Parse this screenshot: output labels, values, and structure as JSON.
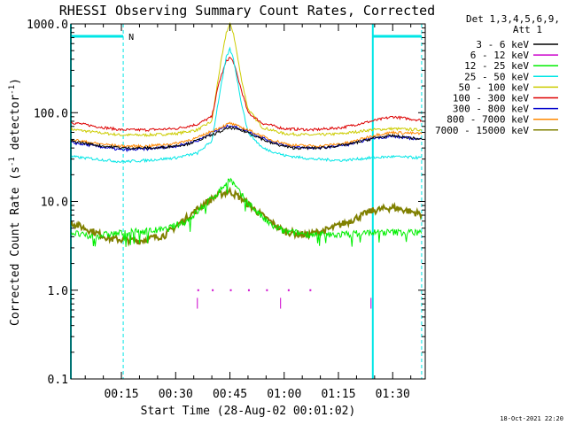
{
  "chart_data": {
    "type": "line",
    "title": "RHESSI Observing Summary Count Rates, Corrected",
    "xlabel": "Start Time (28-Aug-02 00:01:02)",
    "ylabel_main": "Corrected Count Rate (s",
    "ylabel_sup1": "-1",
    "ylabel_mid": " detector",
    "ylabel_sup2": "-1",
    "ylabel_end": ")",
    "y_scale": "log",
    "ylim": [
      0.1,
      1000.0
    ],
    "xlim_minutes": [
      1.03,
      99
    ],
    "x_tick_labels": [
      "00:15",
      "00:30",
      "00:45",
      "01:00",
      "01:15",
      "01:30"
    ],
    "x_tick_minutes": [
      15,
      30,
      45,
      60,
      75,
      90
    ],
    "y_tick_labels": [
      "0.1",
      "1.0",
      "10.0",
      "100.0",
      "1000.0"
    ],
    "y_tick_values": [
      0.1,
      1,
      10,
      100,
      1000
    ],
    "legend_header_1": "Det 1,3,4,5,6,9,",
    "legend_header_2": "Att 1",
    "legend_position": "right",
    "night_marker_label": "N",
    "night_intervals_minutes": [
      [
        1.03,
        15.5
      ],
      [
        84.5,
        98
      ]
    ],
    "series": [
      {
        "name": "3 - 6 keV",
        "color": "#000000",
        "points": [
          [
            1,
            48
          ],
          [
            10,
            42
          ],
          [
            16,
            40
          ],
          [
            25,
            40
          ],
          [
            33,
            44
          ],
          [
            40,
            56
          ],
          [
            45,
            68
          ],
          [
            50,
            60
          ],
          [
            56,
            46
          ],
          [
            62,
            40
          ],
          [
            70,
            40
          ],
          [
            78,
            44
          ],
          [
            85,
            52
          ],
          [
            90,
            55
          ],
          [
            95,
            52
          ],
          [
            98,
            50
          ]
        ]
      },
      {
        "name": "6 - 12 keV",
        "color": "#cc00cc",
        "points": [
          [
            36,
            1.0
          ],
          [
            40,
            1.0
          ],
          [
            45,
            1.0
          ],
          [
            50,
            1.0
          ],
          [
            55,
            1.0
          ],
          [
            61,
            1.0
          ],
          [
            67,
            1.0
          ]
        ]
      },
      {
        "name": "12 - 25 keV",
        "color": "#00ee00",
        "points": [
          [
            1,
            4.5
          ],
          [
            6,
            4.0
          ],
          [
            12,
            4.3
          ],
          [
            20,
            4.6
          ],
          [
            27,
            4.8
          ],
          [
            33,
            6.0
          ],
          [
            38,
            9.0
          ],
          [
            42,
            13
          ],
          [
            45,
            18
          ],
          [
            48,
            12
          ],
          [
            52,
            8.0
          ],
          [
            56,
            5.5
          ],
          [
            60,
            4.6
          ],
          [
            66,
            4.3
          ],
          [
            72,
            4.2
          ],
          [
            78,
            4.3
          ],
          [
            85,
            4.5
          ],
          [
            91,
            4.5
          ],
          [
            98,
            4.5
          ]
        ]
      },
      {
        "name": "25 - 50 keV",
        "color": "#00e6e6",
        "points": [
          [
            1,
            32
          ],
          [
            8,
            30
          ],
          [
            15,
            28
          ],
          [
            22,
            29
          ],
          [
            30,
            31
          ],
          [
            36,
            35
          ],
          [
            40,
            48
          ],
          [
            42,
            150
          ],
          [
            44,
            420
          ],
          [
            45,
            520
          ],
          [
            46,
            400
          ],
          [
            48,
            140
          ],
          [
            50,
            60
          ],
          [
            54,
            40
          ],
          [
            60,
            33
          ],
          [
            68,
            30
          ],
          [
            76,
            29
          ],
          [
            84,
            31
          ],
          [
            90,
            32
          ],
          [
            98,
            31
          ]
        ]
      },
      {
        "name": "50 - 100 keV",
        "color": "#cccc00",
        "points": [
          [
            1,
            65
          ],
          [
            8,
            60
          ],
          [
            15,
            56
          ],
          [
            22,
            56
          ],
          [
            30,
            58
          ],
          [
            36,
            64
          ],
          [
            40,
            80
          ],
          [
            42,
            280
          ],
          [
            44,
            800
          ],
          [
            45,
            1000
          ],
          [
            46,
            780
          ],
          [
            48,
            260
          ],
          [
            50,
            110
          ],
          [
            54,
            68
          ],
          [
            60,
            58
          ],
          [
            68,
            56
          ],
          [
            76,
            58
          ],
          [
            84,
            64
          ],
          [
            90,
            66
          ],
          [
            98,
            64
          ]
        ]
      },
      {
        "name": "100 - 300 keV",
        "color": "#dd0000",
        "points": [
          [
            1,
            78
          ],
          [
            8,
            70
          ],
          [
            15,
            64
          ],
          [
            22,
            64
          ],
          [
            30,
            66
          ],
          [
            36,
            74
          ],
          [
            40,
            90
          ],
          [
            42,
            220
          ],
          [
            44,
            380
          ],
          [
            45,
            420
          ],
          [
            46,
            370
          ],
          [
            48,
            190
          ],
          [
            50,
            100
          ],
          [
            54,
            76
          ],
          [
            60,
            66
          ],
          [
            68,
            64
          ],
          [
            76,
            68
          ],
          [
            84,
            80
          ],
          [
            90,
            90
          ],
          [
            98,
            82
          ]
        ]
      },
      {
        "name": "300 - 800 keV",
        "color": "#0000cc",
        "points": [
          [
            1,
            46
          ],
          [
            8,
            42
          ],
          [
            15,
            38
          ],
          [
            22,
            39
          ],
          [
            30,
            42
          ],
          [
            36,
            48
          ],
          [
            40,
            60
          ],
          [
            45,
            72
          ],
          [
            50,
            62
          ],
          [
            56,
            48
          ],
          [
            62,
            41
          ],
          [
            70,
            40
          ],
          [
            78,
            44
          ],
          [
            85,
            52
          ],
          [
            90,
            54
          ],
          [
            98,
            50
          ]
        ]
      },
      {
        "name": "800 - 7000 keV",
        "color": "#ff8800",
        "points": [
          [
            1,
            50
          ],
          [
            8,
            45
          ],
          [
            15,
            42
          ],
          [
            22,
            42
          ],
          [
            30,
            45
          ],
          [
            36,
            52
          ],
          [
            40,
            62
          ],
          [
            45,
            76
          ],
          [
            50,
            64
          ],
          [
            56,
            50
          ],
          [
            62,
            43
          ],
          [
            70,
            42
          ],
          [
            78,
            46
          ],
          [
            85,
            56
          ],
          [
            90,
            60
          ],
          [
            98,
            58
          ]
        ]
      },
      {
        "name": "7000 - 15000 keV",
        "color": "#808000",
        "points": [
          [
            1,
            5.8
          ],
          [
            6,
            4.8
          ],
          [
            12,
            3.8
          ],
          [
            20,
            3.6
          ],
          [
            27,
            4.2
          ],
          [
            33,
            6.5
          ],
          [
            38,
            9.5
          ],
          [
            42,
            12
          ],
          [
            45,
            13
          ],
          [
            48,
            11
          ],
          [
            52,
            8.0
          ],
          [
            56,
            6.0
          ],
          [
            60,
            4.6
          ],
          [
            66,
            4.2
          ],
          [
            72,
            4.8
          ],
          [
            78,
            6.0
          ],
          [
            84,
            7.8
          ],
          [
            90,
            8.6
          ],
          [
            98,
            7.2
          ]
        ]
      }
    ]
  },
  "timestamp": "18-Oct-2021 22:20"
}
